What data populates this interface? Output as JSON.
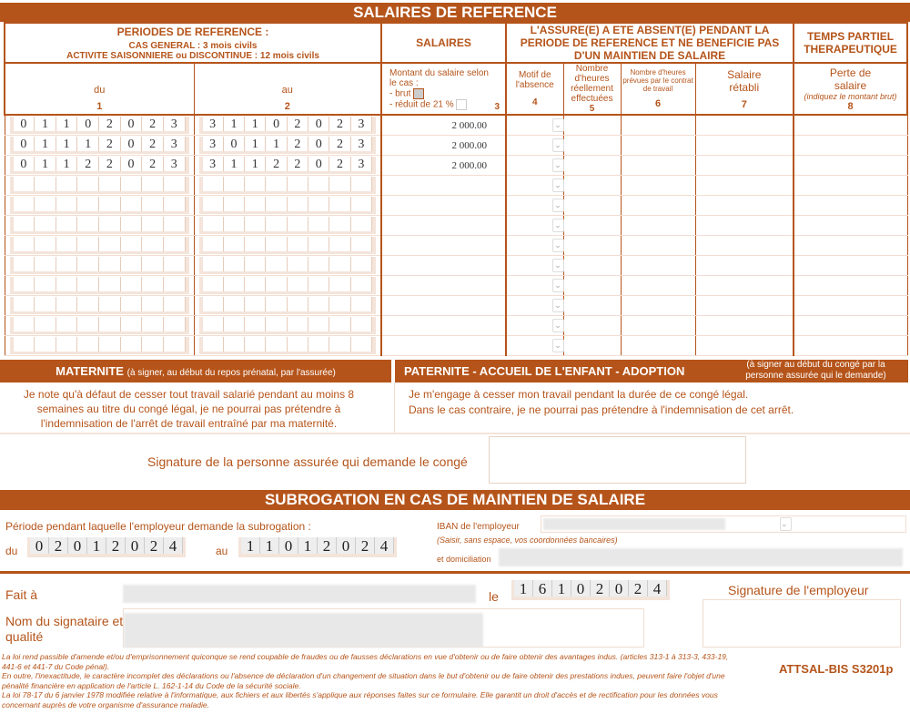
{
  "title": "SALAIRES DE REFERENCE",
  "headers": {
    "periods_title": "PERIODES DE REFERENCE :",
    "periods_general": "CAS GENERAL : 3 mois civils",
    "periods_seasonal": "ACTIVITE SAISONNIERE ou DISCONTINUE : 12 mois civils",
    "salaires": "SALAIRES",
    "absent": "L'ASSURE(E) A ETE ABSENT(E) PENDANT LA PERIODE DE REFERENCE ET NE BENEFICIE PAS D'UN MAINTIEN DE SALAIRE",
    "temps_partiel": "TEMPS PARTIEL THERAPEUTIQUE",
    "du": "du",
    "du_num": "1",
    "au": "au",
    "au_num": "2",
    "montant": "Montant du salaire selon le cas :",
    "brut": "- brut",
    "reduit": "- réduit de 21 %",
    "col3": "3",
    "motif": "Motif de l'absence",
    "col4": "4",
    "heures_eff": "Nombre d'heures réellement effectuées",
    "col5": "5",
    "heures_prev": "Nombre d'heures prévues par le contrat de travail",
    "col6": "6",
    "salaire_retabli": "Salaire rétabli",
    "col7": "7",
    "perte": "Perte de salaire",
    "perte_note": "(indiquez le montant brut)",
    "col8": "8"
  },
  "salary_mode": "brut",
  "rows": [
    {
      "du": "01102023",
      "au": "31102023",
      "salaire": "2 000.00"
    },
    {
      "du": "01112023",
      "au": "30112023",
      "salaire": "2 000.00"
    },
    {
      "du": "01122023",
      "au": "31122023",
      "salaire": "2 000.00"
    },
    {
      "du": "",
      "au": "",
      "salaire": ""
    },
    {
      "du": "",
      "au": "",
      "salaire": ""
    },
    {
      "du": "",
      "au": "",
      "salaire": ""
    },
    {
      "du": "",
      "au": "",
      "salaire": ""
    },
    {
      "du": "",
      "au": "",
      "salaire": ""
    },
    {
      "du": "",
      "au": "",
      "salaire": ""
    },
    {
      "du": "",
      "au": "",
      "salaire": ""
    },
    {
      "du": "",
      "au": "",
      "salaire": ""
    },
    {
      "du": "",
      "au": "",
      "salaire": ""
    }
  ],
  "maternite": {
    "title": "MATERNITE",
    "note": "(à signer, au début du repos  prénatal, par l'assurée)",
    "text": "Je note qu'à défaut de cesser tout travail salarié pendant au moins 8 semaines au titre du congé légal, je ne pourrai pas prétendre à l'indemnisation de l'arrêt de travail entraîné par ma maternité."
  },
  "paternite": {
    "title": "PATERNITE - ACCUEIL DE L'ENFANT - ADOPTION",
    "note": "(à signer au début du congé par la personne assurée qui le demande)",
    "text1": "Je m'engage à cesser  mon travail pendant la durée de ce congé légal.",
    "text2": "Dans le cas contraire, je ne pourrai pas prétendre à l'indemnisation de cet arrêt."
  },
  "signature_assure": "Signature de la personne assurée qui demande le congé",
  "subrogation": {
    "title": "SUBROGATION EN CAS DE MAINTIEN DE SALAIRE",
    "periode_label": "Période pendant laquelle l'employeur demande la subrogation :",
    "du_label": "du",
    "du": "02012024",
    "au_label": "au",
    "au": "11012024",
    "iban_label": "IBAN de l'employeur",
    "iban_note": "(Saisir, sans espace, vos coordonnées bancaires)",
    "domiciliation_label": "et domiciliation"
  },
  "fait_a_label": "Fait à",
  "le_label": "le",
  "date": "16102024",
  "signataire_label": "Nom du signataire et qualité",
  "signature_employeur": "Signature de l'employeur",
  "footer": {
    "l1": "La loi rend passible d'amende et/ou d'emprisonnement quiconque se rend coupable de fraudes ou de fausses déclarations en vue d'obtenir ou de faire obtenir des avantages indus. (articles 313-1 à 313-3, 433-19, 441-6 et 441-7 du Code pénal).",
    "l2": "En outre, l'inexactitude, le caractère incomplet des déclarations ou l'absence de déclaration d'un changement de situation dans le but d'obtenir ou de faire obtenir des prestations indues, peuvent faire l'objet d'une pénalité financière en application de l'article L. 162-1-14 du Code de la sécurité sociale.",
    "l3": "La loi 78-17 du 6 janvier 1978 modifiée relative à  l'informatique, aux fichiers et aux libertés s'applique aux réponses faites sur ce formulaire. Elle garantit un droit d'accès et de rectification pour les données vous concernant  auprès de votre organisme d'assurance maladie.",
    "code": "ATTSAL-BIS S3201p"
  },
  "colors": {
    "accent": "#b5541a",
    "light": "#f4e4da"
  }
}
